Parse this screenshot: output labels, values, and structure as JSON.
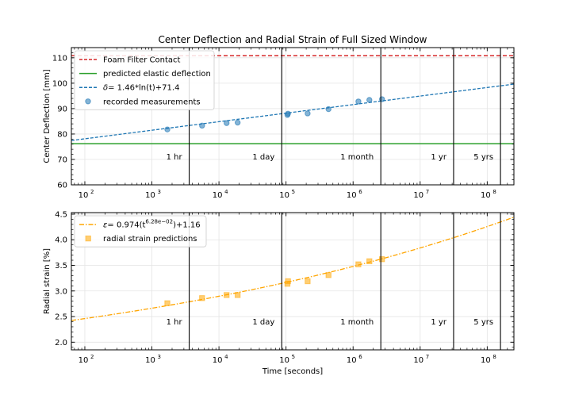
{
  "figure": {
    "title": "Center Deflection and Radial Strain of Full Sized Window",
    "xlabel": "Time [seconds]"
  },
  "chart_data": [
    {
      "type": "scatter",
      "id": "top",
      "ylabel": "Center Deflection [mm]",
      "xscale": "log",
      "xlim": [
        63,
        250000000
      ],
      "ylim": [
        60,
        114
      ],
      "yticks": [
        60,
        70,
        80,
        90,
        100,
        110
      ],
      "xticks": [
        100,
        1000,
        10000,
        100000,
        1000000,
        10000000,
        100000000
      ],
      "xtick_labels": [
        "10",
        "10",
        "10",
        "10",
        "10",
        "10",
        "10"
      ],
      "xtick_exps": [
        "2",
        "3",
        "4",
        "5",
        "6",
        "7",
        "8"
      ],
      "grid": true,
      "legend_position": "top-left",
      "hlines": [
        {
          "name": "Foam Filter Contact",
          "y": 110.8,
          "color": "#d62728",
          "dash": "dashed"
        },
        {
          "name": "predicted elastic deflection",
          "y": 76.2,
          "color": "#2ca02c",
          "dash": "solid"
        }
      ],
      "fit": {
        "name_prefix": "δ",
        "name_rest": "= 1.46*ln(t)+71.4",
        "a": 1.46,
        "b": 71.4,
        "color": "#1f77b4"
      },
      "scatter": {
        "name": "recorded measurements",
        "color": "#1f77b4",
        "x": [
          1700,
          5600,
          13000,
          19000,
          105000,
          107000,
          210000,
          430000,
          1200000,
          1750000,
          2700000
        ],
        "y": [
          81.8,
          83.3,
          84.3,
          84.5,
          87.5,
          88.0,
          88.1,
          89.8,
          92.8,
          93.4,
          93.7
        ]
      },
      "vlines": [
        {
          "x": 3600,
          "label": "1 hr"
        },
        {
          "x": 86400,
          "label": "1 day"
        },
        {
          "x": 2592000,
          "label": "1 month"
        },
        {
          "x": 31536000,
          "label": "1 yr"
        },
        {
          "x": 157680000,
          "label": "5 yrs"
        }
      ]
    },
    {
      "type": "scatter",
      "id": "bottom",
      "ylabel": "Radial strain [%]",
      "xscale": "log",
      "xlim": [
        63,
        250000000
      ],
      "ylim": [
        1.85,
        4.53
      ],
      "yticks": [
        2.0,
        2.5,
        3.0,
        3.5,
        4.0,
        4.5
      ],
      "xticks": [
        100,
        1000,
        10000,
        100000,
        1000000,
        10000000,
        100000000
      ],
      "xtick_labels": [
        "10",
        "10",
        "10",
        "10",
        "10",
        "10",
        "10"
      ],
      "xtick_exps": [
        "2",
        "3",
        "4",
        "5",
        "6",
        "7",
        "8"
      ],
      "grid": true,
      "legend_position": "top-left",
      "fit": {
        "name_prefix": "ε",
        "name_rest": "= 0.974(t",
        "name_exp": "6.28e−02",
        "name_tail": ")+1.16",
        "a": 0.974,
        "p": 0.0628,
        "c": 1.16,
        "color": "#ffa500"
      },
      "scatter": {
        "name": "radial strain predictions",
        "color": "#ffa500",
        "x": [
          1700,
          5600,
          13000,
          19000,
          105000,
          107000,
          210000,
          430000,
          1200000,
          1750000,
          2700000
        ],
        "y": [
          2.76,
          2.86,
          2.92,
          2.92,
          3.14,
          3.19,
          3.19,
          3.31,
          3.52,
          3.58,
          3.62
        ]
      },
      "vlines": [
        {
          "x": 3600,
          "label": "1 hr"
        },
        {
          "x": 86400,
          "label": "1 day"
        },
        {
          "x": 2592000,
          "label": "1 month"
        },
        {
          "x": 31536000,
          "label": "1 yr"
        },
        {
          "x": 157680000,
          "label": "5 yrs"
        }
      ]
    }
  ]
}
